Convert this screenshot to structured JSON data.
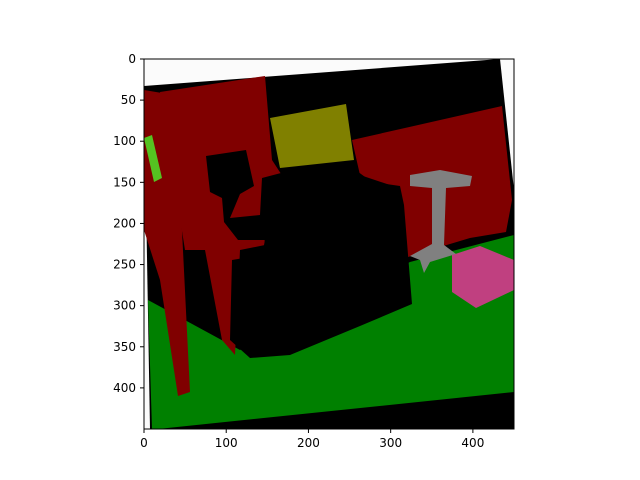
{
  "figure": {
    "image_kind": "semantic segmentation mask",
    "axes": {
      "x_ticks": [
        "0",
        "100",
        "200",
        "300",
        "400"
      ],
      "y_ticks": [
        "0",
        "50",
        "100",
        "150",
        "200",
        "250",
        "300",
        "350",
        "400"
      ],
      "xlim": [
        0,
        450
      ],
      "ylim": [
        0,
        450
      ]
    },
    "colors": {
      "background": "#fbfbfb",
      "void": "#000000",
      "wall": "#800000",
      "floor": "#008000",
      "picture": "#808000",
      "door": "#55c221",
      "table": "#808080",
      "box": "#c04080"
    }
  }
}
